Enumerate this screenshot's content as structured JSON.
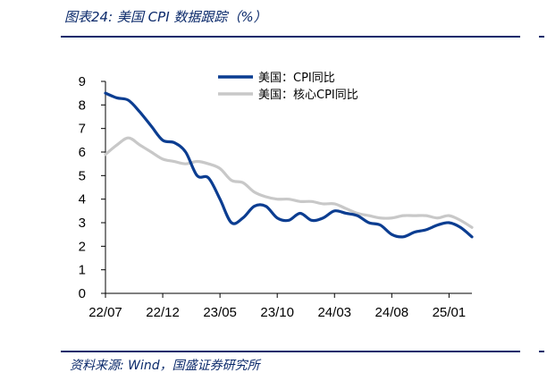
{
  "header": {
    "title": "图表24:  美国 CPI 数据跟踪（%）"
  },
  "footer": {
    "source": "资料来源:  Wind，国盛证券研究所"
  },
  "chart_data": {
    "type": "line",
    "title": "图表24:  美国 CPI 数据跟踪（%）",
    "xlabel": "",
    "ylabel": "",
    "ylim": [
      0,
      9
    ],
    "yticks": [
      0,
      1,
      2,
      3,
      4,
      5,
      6,
      7,
      8,
      9
    ],
    "xtick_labels": [
      "22/07",
      "22/12",
      "23/05",
      "23/10",
      "24/03",
      "24/08",
      "25/01"
    ],
    "x": [
      "22/07",
      "22/08",
      "22/09",
      "22/10",
      "22/11",
      "22/12",
      "23/01",
      "23/02",
      "23/03",
      "23/04",
      "23/05",
      "23/06",
      "23/07",
      "23/08",
      "23/09",
      "23/10",
      "23/11",
      "23/12",
      "24/01",
      "24/02",
      "24/03",
      "24/04",
      "24/05",
      "24/06",
      "24/07",
      "24/08",
      "24/09",
      "24/10",
      "24/11",
      "24/12",
      "25/01",
      "25/02",
      "25/03"
    ],
    "grid": false,
    "legend_position": "top",
    "series": [
      {
        "name": "美国：CPI同比",
        "color": "#0b3d91",
        "values": [
          8.5,
          8.3,
          8.2,
          7.7,
          7.1,
          6.5,
          6.4,
          6.0,
          5.0,
          4.9,
          4.0,
          3.0,
          3.2,
          3.7,
          3.7,
          3.2,
          3.1,
          3.4,
          3.1,
          3.2,
          3.5,
          3.4,
          3.3,
          3.0,
          2.9,
          2.5,
          2.4,
          2.6,
          2.7,
          2.9,
          3.0,
          2.8,
          2.4
        ]
      },
      {
        "name": "美国：核心CPI同比",
        "color": "#c8c8c8",
        "values": [
          5.9,
          6.3,
          6.6,
          6.3,
          6.0,
          5.7,
          5.6,
          5.5,
          5.6,
          5.5,
          5.3,
          4.8,
          4.7,
          4.3,
          4.1,
          4.0,
          4.0,
          3.9,
          3.9,
          3.8,
          3.8,
          3.6,
          3.4,
          3.3,
          3.2,
          3.2,
          3.3,
          3.3,
          3.3,
          3.2,
          3.3,
          3.1,
          2.8
        ]
      }
    ]
  }
}
